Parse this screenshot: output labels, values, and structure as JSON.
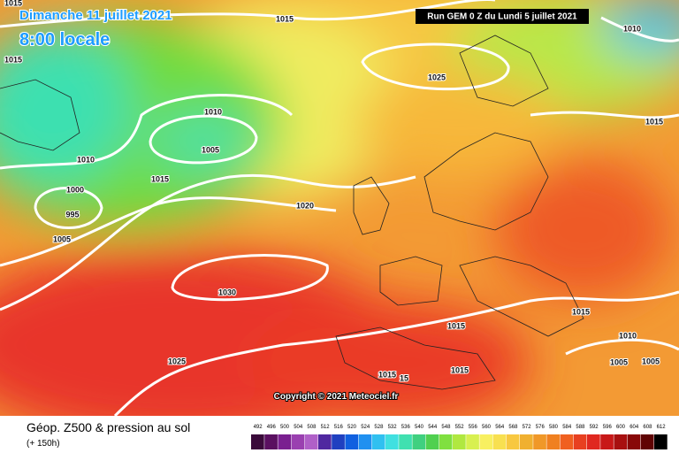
{
  "header": {
    "date": "Dimanche 11 juillet 2021",
    "time": "8:00 locale",
    "run": "Run GEM 0 Z du Lundi 5 juillet 2021"
  },
  "isobars": [
    1015,
    1015,
    1010,
    1015,
    1025,
    1010,
    1015,
    1005,
    1010,
    1015,
    1000,
    1020,
    995,
    1005,
    1030,
    1015,
    1015,
    1010,
    1025,
    1005,
    1005,
    1015,
    15,
    1015
  ],
  "copyright": "Copyright © 2021 Meteociel.fr",
  "footer": {
    "title": "Géop. Z500 & pression au sol",
    "subtitle": "(+ 150h)"
  },
  "scale": {
    "ticks": [
      492,
      496,
      500,
      504,
      508,
      512,
      516,
      520,
      524,
      528,
      532,
      536,
      540,
      544,
      548,
      552,
      556,
      560,
      564,
      568,
      572,
      576,
      580,
      584,
      588,
      592,
      596,
      600,
      604,
      608,
      612
    ],
    "colors": [
      "#3a0a3a",
      "#5a1060",
      "#7a2090",
      "#9a40b0",
      "#b060c8",
      "#5028a0",
      "#2040c0",
      "#1060e0",
      "#2090f0",
      "#30c0f0",
      "#40e0e0",
      "#40e0b0",
      "#40d080",
      "#50d050",
      "#80e040",
      "#b0e840",
      "#d8f050",
      "#f8f060",
      "#f8e050",
      "#f8c840",
      "#f0b030",
      "#f09828",
      "#f08020",
      "#f06020",
      "#e84020",
      "#e02820",
      "#c81818",
      "#a81010",
      "#880808",
      "#600404",
      "#000000"
    ]
  }
}
